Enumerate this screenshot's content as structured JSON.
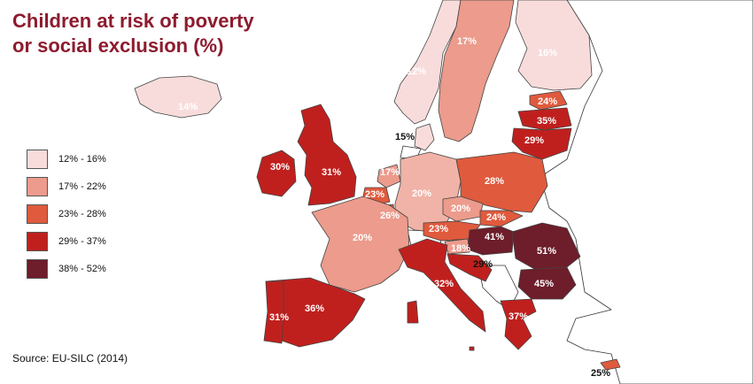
{
  "title": {
    "line1": "Children at risk of poverty",
    "line2": "or social exclusion (%)"
  },
  "legend": [
    {
      "label": "12% - 16%",
      "color": "#f8dcdb"
    },
    {
      "label": "17% - 22%",
      "color": "#ec9b8c"
    },
    {
      "label": "23% - 28%",
      "color": "#e05a3d"
    },
    {
      "label": "29% - 37%",
      "color": "#c0201d"
    },
    {
      "label": "38% - 52%",
      "color": "#6e1d2a"
    }
  ],
  "source": "Source: EU-SILC (2014)",
  "countries": [
    {
      "name": "Iceland",
      "value": "14%"
    },
    {
      "name": "Norway",
      "value": "12%"
    },
    {
      "name": "Sweden",
      "value": "17%"
    },
    {
      "name": "Finland",
      "value": "16%"
    },
    {
      "name": "Denmark",
      "value": "15%"
    },
    {
      "name": "Estonia",
      "value": "24%"
    },
    {
      "name": "Latvia",
      "value": "35%"
    },
    {
      "name": "Lithuania",
      "value": "29%"
    },
    {
      "name": "Ireland",
      "value": "30%"
    },
    {
      "name": "United Kingdom",
      "value": "31%"
    },
    {
      "name": "Netherlands",
      "value": "17%"
    },
    {
      "name": "Belgium",
      "value": "23%"
    },
    {
      "name": "Luxembourg",
      "value": "26%"
    },
    {
      "name": "Germany",
      "value": "20%"
    },
    {
      "name": "Poland",
      "value": "28%"
    },
    {
      "name": "Czechia",
      "value": "20%"
    },
    {
      "name": "Slovakia",
      "value": "24%"
    },
    {
      "name": "Austria",
      "value": "23%"
    },
    {
      "name": "Slovenia",
      "value": "18%"
    },
    {
      "name": "Hungary",
      "value": "41%"
    },
    {
      "name": "Romania",
      "value": "51%"
    },
    {
      "name": "Croatia",
      "value": "29%"
    },
    {
      "name": "Bulgaria",
      "value": "45%"
    },
    {
      "name": "France",
      "value": "20%"
    },
    {
      "name": "Italy",
      "value": "32%"
    },
    {
      "name": "Spain",
      "value": "36%"
    },
    {
      "name": "Portugal",
      "value": "31%"
    },
    {
      "name": "Greece",
      "value": "37%"
    },
    {
      "name": "Cyprus",
      "value": "25%"
    }
  ]
}
